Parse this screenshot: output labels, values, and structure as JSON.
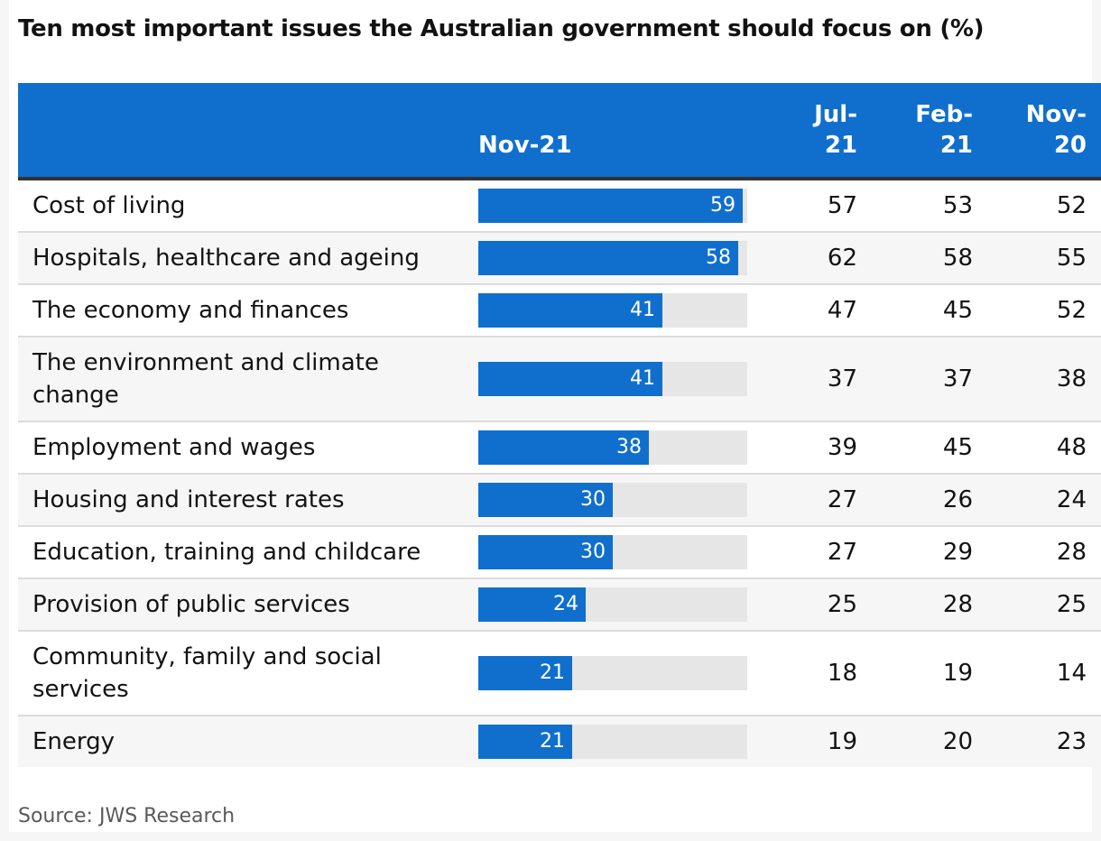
{
  "title": "Ten most important issues the Australian government should focus on (%)",
  "source": "Source: JWS Research",
  "colors": {
    "header_bg": "#106fcc",
    "bar": "#106fcc",
    "track": "#e6e6e6",
    "header_rule": "#333333"
  },
  "chart_data": {
    "type": "table",
    "title": "Ten most important issues the Australian government should focus on (%)",
    "columns": [
      {
        "label": "Nov-21"
      },
      {
        "label": "Jul-\n21"
      },
      {
        "label": "Feb-\n21"
      },
      {
        "label": "Nov-\n20"
      }
    ],
    "bar_scale_max": 60,
    "rows": [
      {
        "issue": "Cost of living",
        "values": [
          59,
          57,
          53,
          52
        ]
      },
      {
        "issue": "Hospitals, healthcare and ageing",
        "values": [
          58,
          62,
          58,
          55
        ]
      },
      {
        "issue": "The economy and finances",
        "values": [
          41,
          47,
          45,
          52
        ]
      },
      {
        "issue": "The environment and climate change",
        "values": [
          41,
          37,
          37,
          38
        ]
      },
      {
        "issue": "Employment and wages",
        "values": [
          38,
          39,
          45,
          48
        ]
      },
      {
        "issue": "Housing and interest rates",
        "values": [
          30,
          27,
          26,
          24
        ]
      },
      {
        "issue": "Education, training and childcare",
        "values": [
          30,
          27,
          29,
          28
        ]
      },
      {
        "issue": "Provision of public services",
        "values": [
          24,
          25,
          28,
          25
        ]
      },
      {
        "issue": "Community, family and social services",
        "values": [
          21,
          18,
          19,
          14
        ]
      },
      {
        "issue": "Energy",
        "values": [
          21,
          19,
          20,
          23
        ]
      }
    ]
  }
}
